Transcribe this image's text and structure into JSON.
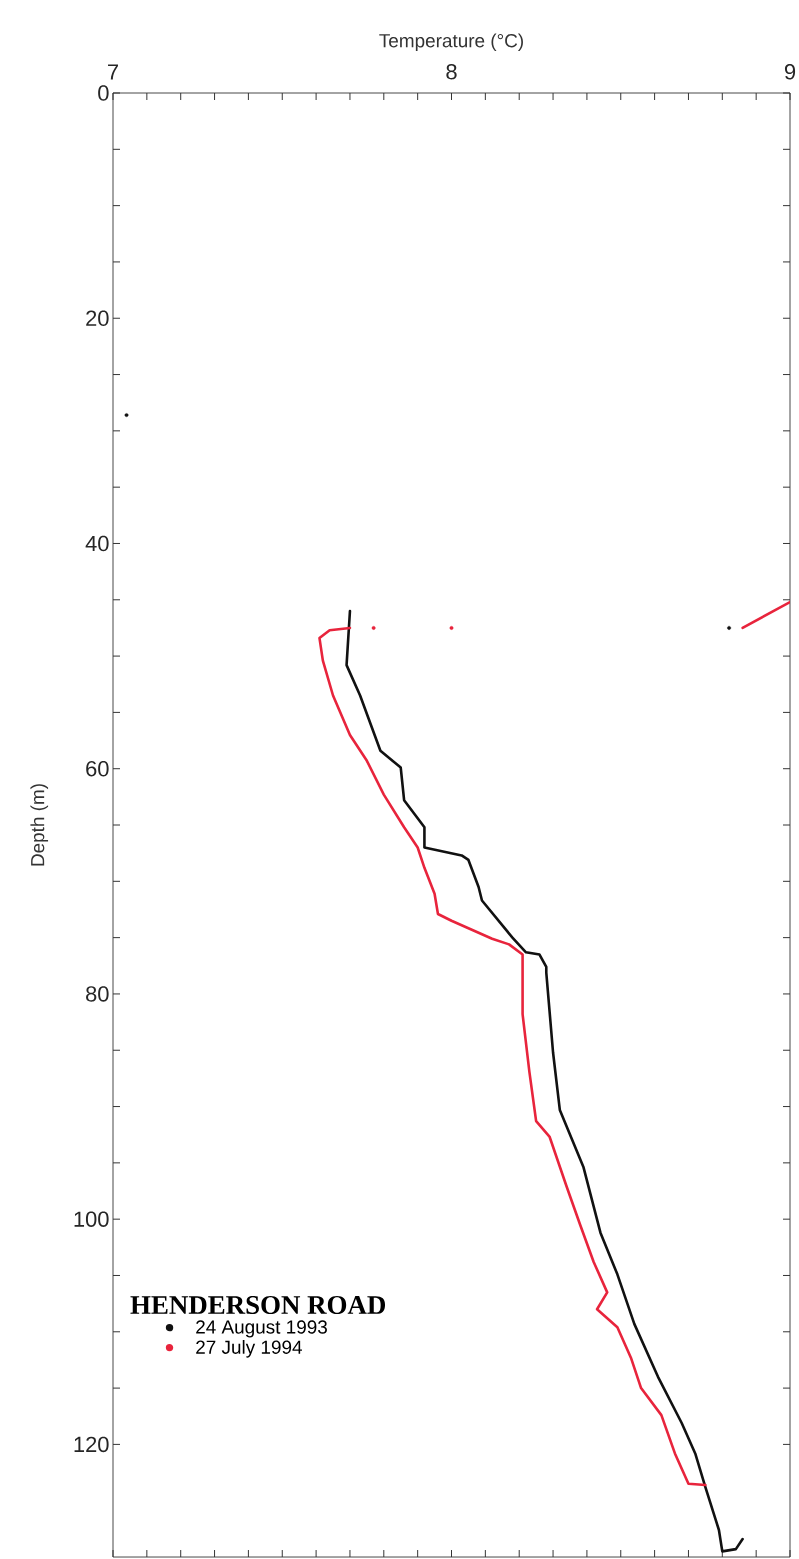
{
  "chart_data": {
    "type": "line",
    "xlabel": "Temperature (°C)",
    "ylabel": "Depth (m)",
    "legend_title": "HENDERSON ROAD",
    "xlim": [
      7,
      9
    ],
    "ylim": [
      130,
      0
    ],
    "xticks": [
      7,
      8,
      9
    ],
    "yticks": [
      0,
      20,
      40,
      60,
      80,
      100,
      120
    ],
    "legend": "bottom left",
    "series": [
      {
        "name": "24 August 1993",
        "color": "#111111",
        "x": [
          7.7,
          7.69,
          7.73,
          7.79,
          7.85,
          7.86,
          7.92,
          7.92,
          8.03,
          8.05,
          8.08,
          8.09,
          8.18,
          8.22,
          8.26,
          8.28,
          8.28,
          8.3,
          8.32,
          8.39,
          8.44,
          8.49,
          8.54,
          8.61,
          8.68,
          8.72,
          8.75,
          8.79,
          8.8,
          8.84,
          8.86
        ],
        "values": [
          46.0,
          50.8,
          53.5,
          58.4,
          59.9,
          62.8,
          65.2,
          67.0,
          67.7,
          68.1,
          70.5,
          71.7,
          75.0,
          76.3,
          76.5,
          77.6,
          78.1,
          85.2,
          90.3,
          95.4,
          101.2,
          104.9,
          109.3,
          114.0,
          118.1,
          120.8,
          123.8,
          127.6,
          129.5,
          129.3,
          128.4
        ]
      },
      {
        "name": "27 July 1994",
        "color": "#e8243c",
        "x": [
          7.7,
          7.64,
          7.61,
          7.62,
          7.65,
          7.7,
          7.75,
          7.8,
          7.86,
          7.9,
          7.92,
          7.95,
          7.96,
          8.0,
          8.06,
          8.12,
          8.17,
          8.21,
          8.21,
          8.23,
          8.25,
          8.29,
          8.34,
          8.38,
          8.42,
          8.46,
          8.43,
          8.49,
          8.53,
          8.56,
          8.62,
          8.66,
          8.7,
          8.75
        ],
        "values": [
          47.5,
          47.7,
          48.4,
          50.4,
          53.5,
          57.0,
          59.3,
          62.3,
          65.2,
          67.0,
          68.8,
          71.1,
          72.9,
          73.5,
          74.3,
          75.1,
          75.6,
          76.5,
          81.8,
          86.9,
          91.3,
          92.7,
          97.1,
          100.5,
          103.8,
          106.5,
          108.0,
          109.6,
          112.3,
          115.0,
          117.4,
          120.8,
          123.5,
          123.6
        ]
      },
      {
        "type": "scatter",
        "color": "#111111",
        "x": [
          7.04,
          8.82
        ],
        "values": [
          28.6,
          47.5
        ]
      },
      {
        "type": "scatter",
        "color": "#e8243c",
        "x": [
          7.77,
          8.0
        ],
        "values": [
          47.5,
          47.5
        ]
      },
      {
        "color": "#e8243c",
        "x": [
          8.86,
          9.0
        ],
        "values": [
          47.5,
          45.2
        ]
      }
    ]
  }
}
